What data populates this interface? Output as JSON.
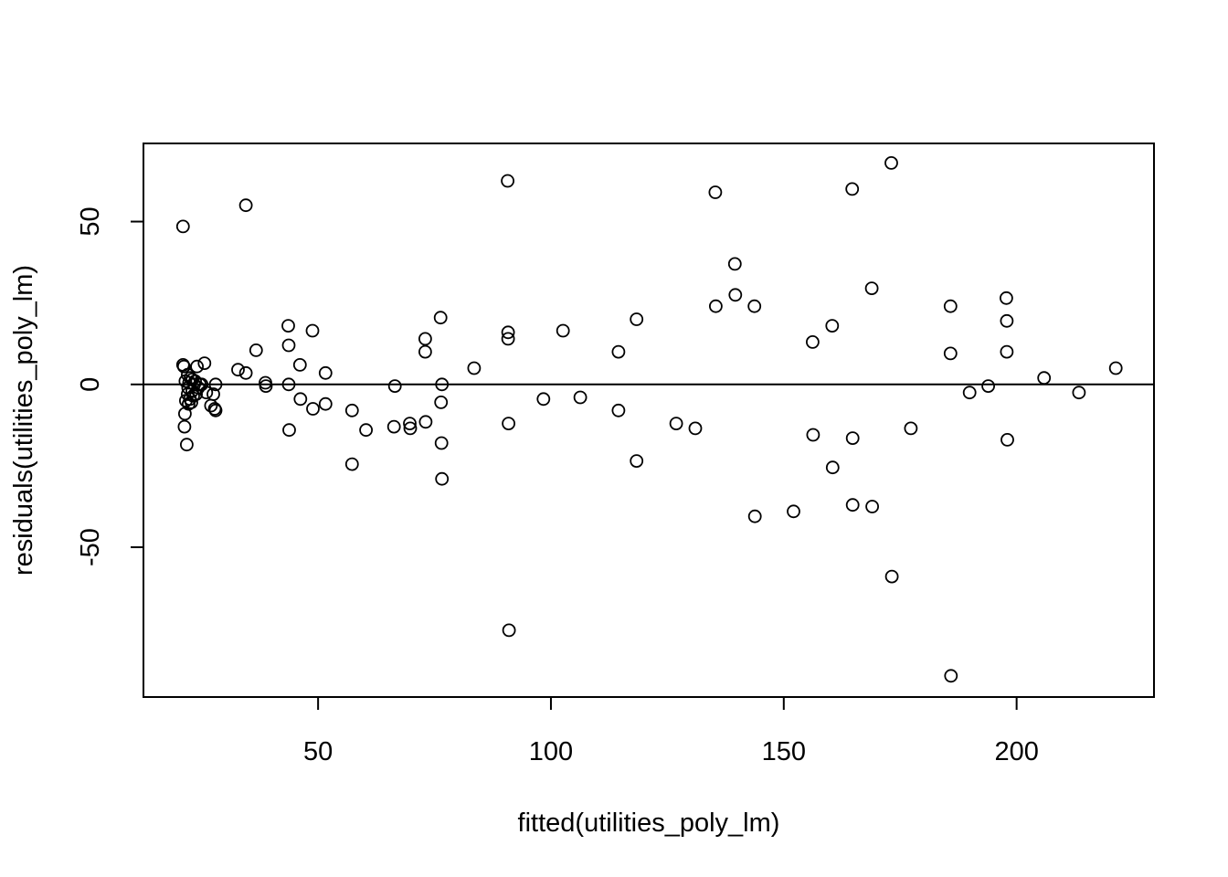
{
  "chart_data": {
    "type": "scatter",
    "title": "",
    "xlabel": "fitted(utilities_poly_lm)",
    "ylabel": "residuals(utilities_poly_lm)",
    "xlim": [
      12.5,
      229.5
    ],
    "ylim": [
      -96,
      74
    ],
    "xticks": [
      50,
      100,
      150,
      200
    ],
    "yticks": [
      -50,
      0,
      50
    ],
    "reference_line_y": 0,
    "grid": false,
    "legend": "none",
    "marker": "open-circle",
    "colors": {
      "points": "#000000",
      "axis": "#000000",
      "background": "#ffffff"
    },
    "series": [
      {
        "x": [
          21.0,
          21.0,
          21.2,
          21.3,
          21.4,
          21.5,
          21.6,
          21.8,
          22.0,
          22.0,
          22.1,
          22.2,
          22.3,
          22.5,
          22.6,
          22.8,
          23.0,
          23.0,
          23.2,
          23.4,
          23.6,
          23.8,
          24.0,
          24.3,
          24.6,
          25.0,
          25.6,
          26.0,
          27.0,
          27.5,
          27.8,
          28.0,
          28.0,
          32.8,
          34.5,
          34.5,
          36.7,
          38.7,
          38.8,
          43.6,
          43.7,
          43.7,
          43.8,
          46.1,
          46.2,
          48.8,
          48.9,
          51.6,
          51.6,
          57.3,
          57.3,
          60.3,
          66.3,
          66.5,
          69.7,
          69.8,
          73.0,
          73.0,
          73.1,
          76.3,
          76.4,
          76.5,
          76.6,
          76.6,
          83.5,
          90.7,
          90.8,
          90.8,
          90.9,
          91.0,
          98.4,
          102.6,
          106.3,
          114.5,
          114.5,
          118.4,
          118.4,
          126.9,
          131.0,
          135.3,
          135.4,
          139.5,
          139.6,
          143.7,
          143.8,
          152.1,
          156.2,
          156.3,
          160.4,
          160.5,
          164.7,
          164.8,
          164.8,
          168.9,
          169.0,
          173.1,
          173.2,
          177.3,
          185.8,
          185.8,
          185.9,
          189.9,
          193.9,
          197.8,
          197.9,
          197.9,
          198.0,
          205.9,
          213.4,
          221.3
        ],
        "y": [
          48.5,
          6.0,
          5.5,
          -13.0,
          -9.0,
          1.0,
          -5.0,
          -18.5,
          3.0,
          -3.0,
          -1.0,
          -6.0,
          0.5,
          -4.5,
          2.0,
          -5.5,
          -2.0,
          1.5,
          -3.5,
          0.0,
          1.0,
          -3.0,
          5.5,
          -1.0,
          0.0,
          0.0,
          6.5,
          -2.5,
          -6.5,
          -3.0,
          -7.5,
          -8.0,
          0.0,
          4.5,
          55.0,
          3.5,
          10.5,
          0.5,
          -0.5,
          18.0,
          12.0,
          0.0,
          -14.0,
          6.0,
          -4.5,
          16.5,
          -7.5,
          3.5,
          -6.0,
          -8.0,
          -24.5,
          -14.0,
          -13.0,
          -0.5,
          -12.0,
          -13.5,
          14.0,
          10.0,
          -11.5,
          20.5,
          -5.5,
          -18.0,
          -29.0,
          0.0,
          5.0,
          62.5,
          16.0,
          14.0,
          -12.0,
          -75.5,
          -4.5,
          16.5,
          -4.0,
          10.0,
          -8.0,
          20.0,
          -23.5,
          -12.0,
          -13.5,
          59.0,
          24.0,
          37.0,
          27.5,
          24.0,
          -40.5,
          -39.0,
          13.0,
          -15.5,
          18.0,
          -25.5,
          60.0,
          -16.5,
          -37.0,
          29.5,
          -37.5,
          68.0,
          -59.0,
          -13.5,
          24.0,
          9.5,
          -89.5,
          -2.5,
          -0.5,
          26.5,
          19.5,
          10.0,
          -17.0,
          2.0,
          -2.5,
          5.0
        ]
      }
    ]
  }
}
